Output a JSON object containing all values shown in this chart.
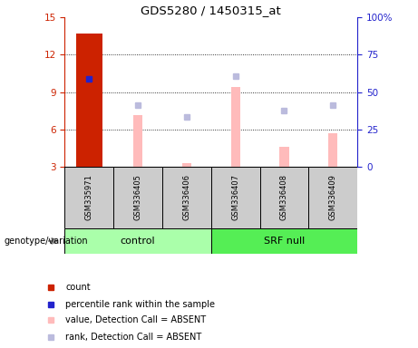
{
  "title": "GDS5280 / 1450315_at",
  "samples": [
    "GSM335971",
    "GSM336405",
    "GSM336406",
    "GSM336407",
    "GSM336408",
    "GSM336409"
  ],
  "groups": {
    "control": [
      0,
      1,
      2
    ],
    "SRF null": [
      3,
      4,
      5
    ]
  },
  "ylim_left": [
    3,
    15
  ],
  "ylim_right": [
    0,
    100
  ],
  "yticks_left": [
    3,
    6,
    9,
    12,
    15
  ],
  "yticks_right": [
    0,
    25,
    50,
    75,
    100
  ],
  "ytick_labels_right": [
    "0",
    "25",
    "50",
    "75",
    "100%"
  ],
  "red_bar": {
    "sample_idx": 0,
    "value": 13.7
  },
  "blue_square": {
    "sample_idx": 0,
    "value": 10.1
  },
  "pink_bars": [
    {
      "sample_idx": 1,
      "value": 7.2
    },
    {
      "sample_idx": 2,
      "value": 3.35
    },
    {
      "sample_idx": 3,
      "value": 9.4
    },
    {
      "sample_idx": 4,
      "value": 4.6
    },
    {
      "sample_idx": 5,
      "value": 5.7
    }
  ],
  "lavender_squares": [
    {
      "sample_idx": 1,
      "value": 8.0
    },
    {
      "sample_idx": 2,
      "value": 7.0
    },
    {
      "sample_idx": 3,
      "value": 10.3
    },
    {
      "sample_idx": 4,
      "value": 7.5
    },
    {
      "sample_idx": 5,
      "value": 8.0
    }
  ],
  "colors": {
    "red_bar": "#cc2200",
    "blue_square": "#2222cc",
    "pink_bar": "#ffbbbb",
    "lavender_square": "#bbbbdd",
    "control_bg": "#aaffaa",
    "srf_null_bg": "#55ee55",
    "sample_cell_bg": "#cccccc",
    "axis_left_color": "#cc2200",
    "axis_right_color": "#2222cc"
  },
  "legend": [
    {
      "label": "count",
      "color": "#cc2200",
      "marker": "s"
    },
    {
      "label": "percentile rank within the sample",
      "color": "#2222cc",
      "marker": "s"
    },
    {
      "label": "value, Detection Call = ABSENT",
      "color": "#ffbbbb",
      "marker": "s"
    },
    {
      "label": "rank, Detection Call = ABSENT",
      "color": "#bbbbdd",
      "marker": "s"
    }
  ],
  "genotype_label": "genotype/variation"
}
